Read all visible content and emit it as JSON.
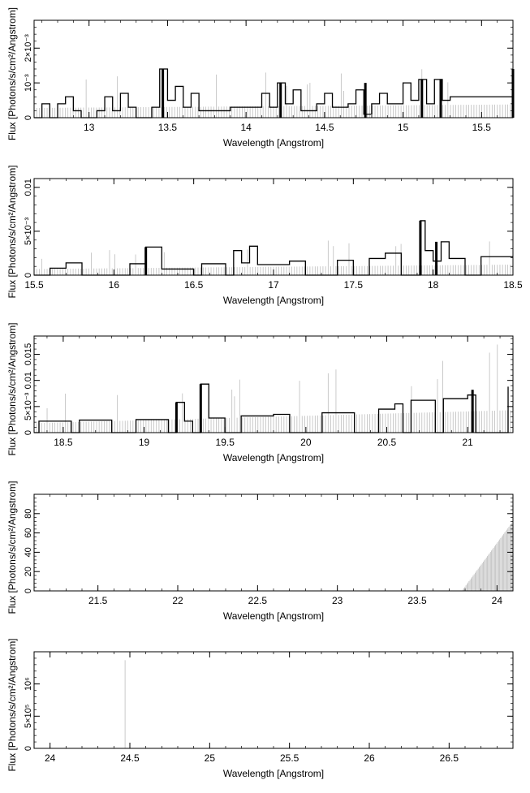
{
  "chart_data": [
    {
      "type": "line",
      "xlabel": "Wavelength [Angstrom]",
      "ylabel": "Flux [Photons/s/cm²/Angstrom]",
      "xlim": [
        12.65,
        15.7
      ],
      "ylim": [
        0,
        0.0028
      ],
      "xticks": [
        13,
        13.5,
        14,
        14.5,
        15,
        15.5
      ],
      "yticks": [
        {
          "v": 0,
          "t": "0"
        },
        {
          "v": 0.001,
          "t": "10⁻³"
        },
        {
          "v": 0.002,
          "t": "2×10⁻³"
        }
      ],
      "err_base": 0.00028,
      "err_slope": 0.0001,
      "spikes": [
        [
          13.47,
          0.0014
        ],
        [
          14.22,
          0.001
        ],
        [
          14.76,
          0.001
        ],
        [
          15.12,
          0.0011
        ],
        [
          15.24,
          0.0011
        ],
        [
          15.7,
          0.0014
        ]
      ],
      "steps": [
        [
          12.65,
          0
        ],
        [
          12.7,
          0.0004
        ],
        [
          12.75,
          0
        ],
        [
          12.8,
          0.0004
        ],
        [
          12.85,
          0.0006
        ],
        [
          12.9,
          0.0002
        ],
        [
          12.95,
          0
        ],
        [
          13.05,
          0.0002
        ],
        [
          13.1,
          0.0006
        ],
        [
          13.15,
          0.0002
        ],
        [
          13.2,
          0.0007
        ],
        [
          13.25,
          0.0003
        ],
        [
          13.3,
          0
        ],
        [
          13.4,
          0.0003
        ],
        [
          13.45,
          0.0014
        ],
        [
          13.5,
          0.0005
        ],
        [
          13.55,
          0.0009
        ],
        [
          13.6,
          0.0003
        ],
        [
          13.65,
          0.0007
        ],
        [
          13.7,
          0.0002
        ],
        [
          13.9,
          0.0003
        ],
        [
          14.1,
          0.0007
        ],
        [
          14.15,
          0.0003
        ],
        [
          14.2,
          0.001
        ],
        [
          14.25,
          0.0004
        ],
        [
          14.3,
          0.0008
        ],
        [
          14.35,
          0.0002
        ],
        [
          14.45,
          0.0004
        ],
        [
          14.5,
          0.0007
        ],
        [
          14.55,
          0.0003
        ],
        [
          14.65,
          0.0004
        ],
        [
          14.7,
          0.0008
        ],
        [
          14.75,
          0.0001
        ],
        [
          14.8,
          0.0004
        ],
        [
          14.85,
          0.0007
        ],
        [
          14.9,
          0.0004
        ],
        [
          15.0,
          0.001
        ],
        [
          15.05,
          0.0005
        ],
        [
          15.1,
          0.0011
        ],
        [
          15.15,
          0.0004
        ],
        [
          15.2,
          0.0011
        ],
        [
          15.25,
          0.0005
        ],
        [
          15.3,
          0.0006
        ],
        [
          15.5,
          0.0006
        ],
        [
          15.6,
          0.0006
        ],
        [
          15.7,
          0.0014
        ]
      ]
    },
    {
      "type": "line",
      "xlabel": "Wavelength [Angstrom]",
      "ylabel": "Flux [Photons/s/cm²/Angstrom]",
      "xlim": [
        15.5,
        18.5
      ],
      "ylim": [
        0,
        0.011
      ],
      "xticks": [
        15.5,
        16,
        16.5,
        17,
        17.5,
        18,
        18.5
      ],
      "yticks": [
        {
          "v": 0,
          "t": "0"
        },
        {
          "v": 0.005,
          "t": "5×10⁻³"
        },
        {
          "v": 0.01,
          "t": "0.01"
        }
      ],
      "err_base": 0.0007,
      "err_slope": 0.0005,
      "spikes": [
        [
          16.2,
          0.0032
        ],
        [
          17.92,
          0.0062
        ],
        [
          18.02,
          0.0038
        ]
      ],
      "steps": [
        [
          15.5,
          0
        ],
        [
          15.6,
          0.0008
        ],
        [
          15.7,
          0.0014
        ],
        [
          15.8,
          0
        ],
        [
          16.1,
          0.0013
        ],
        [
          16.2,
          0.0032
        ],
        [
          16.3,
          0.0007
        ],
        [
          16.5,
          0
        ],
        [
          16.55,
          0.0013
        ],
        [
          16.7,
          0
        ],
        [
          16.75,
          0.0028
        ],
        [
          16.8,
          0.0014
        ],
        [
          16.85,
          0.0033
        ],
        [
          16.9,
          0.0012
        ],
        [
          17.1,
          0.0016
        ],
        [
          17.2,
          0
        ],
        [
          17.4,
          0.0017
        ],
        [
          17.5,
          0
        ],
        [
          17.6,
          0.0019
        ],
        [
          17.7,
          0.0025
        ],
        [
          17.8,
          0
        ],
        [
          17.92,
          0.0062
        ],
        [
          17.95,
          0.0028
        ],
        [
          18.0,
          0.0016
        ],
        [
          18.05,
          0.0038
        ],
        [
          18.1,
          0.0019
        ],
        [
          18.2,
          0
        ],
        [
          18.3,
          0.0021
        ],
        [
          18.5,
          0.0021
        ]
      ]
    },
    {
      "type": "line",
      "xlabel": "Wavelength [Angstrom]",
      "ylabel": "Flux [Photons/s/cm²/Angstrom]",
      "xlim": [
        18.32,
        21.28
      ],
      "ylim": [
        0,
        0.0185
      ],
      "xticks": [
        18.5,
        19,
        19.5,
        20,
        20.5,
        21
      ],
      "yticks": [
        {
          "v": 0,
          "t": "0"
        },
        {
          "v": 0.005,
          "t": "5×10⁻³"
        },
        {
          "v": 0.01,
          "t": "0.01"
        },
        {
          "v": 0.015,
          "t": "0.015"
        }
      ],
      "err_base": 0.0018,
      "err_slope": 0.0025,
      "spikes": [
        [
          19.35,
          0.0093
        ],
        [
          19.2,
          0.0058
        ],
        [
          21.03,
          0.0082
        ]
      ],
      "steps": [
        [
          18.32,
          0
        ],
        [
          18.35,
          0.0022
        ],
        [
          18.5,
          0.0022
        ],
        [
          18.55,
          0
        ],
        [
          18.6,
          0.0024
        ],
        [
          18.8,
          0
        ],
        [
          18.95,
          0.0025
        ],
        [
          19.05,
          0.0025
        ],
        [
          19.15,
          0
        ],
        [
          19.2,
          0.0058
        ],
        [
          19.25,
          0.0022
        ],
        [
          19.3,
          0
        ],
        [
          19.35,
          0.0093
        ],
        [
          19.4,
          0.0028
        ],
        [
          19.5,
          0
        ],
        [
          19.6,
          0.0032
        ],
        [
          19.8,
          0.0035
        ],
        [
          19.9,
          0
        ],
        [
          20.1,
          0.0038
        ],
        [
          20.3,
          0
        ],
        [
          20.45,
          0.0045
        ],
        [
          20.55,
          0.0055
        ],
        [
          20.6,
          0
        ],
        [
          20.65,
          0.0062
        ],
        [
          20.8,
          0
        ],
        [
          20.85,
          0.0065
        ],
        [
          21.0,
          0.0072
        ],
        [
          21.05,
          0
        ],
        [
          21.25,
          0.0088
        ]
      ]
    },
    {
      "type": "line",
      "xlabel": "Wavelength [Angstrom]",
      "ylabel": "Flux [Photons/s/cm²/Angstrom]",
      "xlim": [
        21.1,
        24.1
      ],
      "ylim": [
        0,
        100
      ],
      "xticks": [
        21.5,
        22,
        22.5,
        23,
        23.5,
        24
      ],
      "yticks": [
        {
          "v": 0,
          "t": "0"
        },
        {
          "v": 20,
          "t": "20"
        },
        {
          "v": 40,
          "t": "40"
        },
        {
          "v": 60,
          "t": "60"
        },
        {
          "v": 80,
          "t": "80"
        }
      ],
      "ramp": [
        23.78,
        24.1,
        72
      ],
      "spikes": [],
      "steps": []
    },
    {
      "type": "line",
      "xlabel": "Wavelength [Angstrom]",
      "ylabel": "Flux [Photons/s/cm²/Angstrom]",
      "xlim": [
        23.9,
        26.9
      ],
      "ylim": [
        0,
        1500000
      ],
      "xticks": [
        24,
        24.5,
        25,
        25.5,
        26,
        26.5
      ],
      "yticks": [
        {
          "v": 0,
          "t": "0"
        },
        {
          "v": 500000,
          "t": "5×10⁵"
        },
        {
          "v": 1000000,
          "t": "10⁶"
        }
      ],
      "spike_line": [
        24.47,
        1370000
      ],
      "spikes": [],
      "steps": []
    }
  ]
}
